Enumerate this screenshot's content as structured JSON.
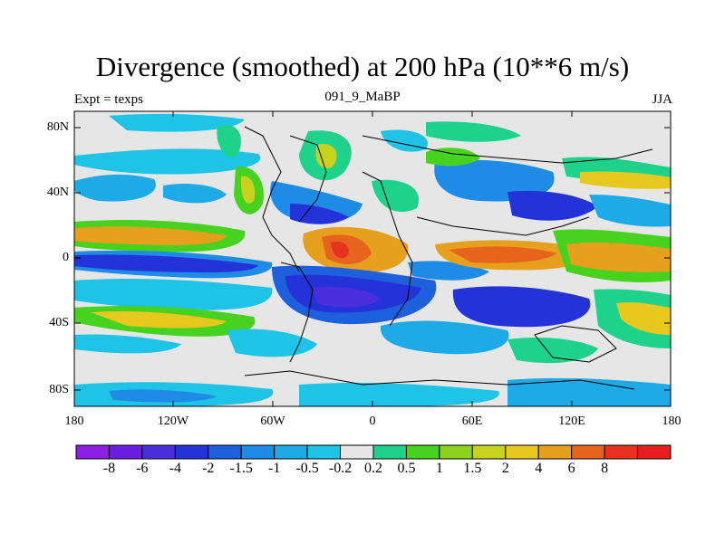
{
  "title": "Divergence (smoothed) at 200 hPa (10**6 m/s)",
  "left_label": "Expt = texps",
  "center_label": "091_9_MaBP",
  "right_label": "JJA",
  "axes": {
    "y_ticks": [
      "80N",
      "40N",
      "0",
      "40S",
      "80S"
    ],
    "x_ticks": [
      "180",
      "120W",
      "60W",
      "0",
      "60E",
      "120E",
      "180"
    ]
  },
  "colorbar": {
    "colors": [
      "#8c1ee6",
      "#6b1ee0",
      "#4b2edc",
      "#2333d8",
      "#1e5fdc",
      "#1e8ce6",
      "#1eaae6",
      "#1ec3e6",
      "#e6e6e6",
      "#1ed28c",
      "#46d21e",
      "#8cd21e",
      "#c8d21e",
      "#e6c81e",
      "#e6a01e",
      "#e6641e",
      "#e6321e",
      "#e61e1e"
    ],
    "labels": [
      "-8",
      "-6",
      "-4",
      "-2",
      "-1.5",
      "-1",
      "-0.5",
      "-0.2",
      "0.2",
      "0.5",
      "1",
      "1.5",
      "2",
      "4",
      "6",
      "8"
    ]
  }
}
